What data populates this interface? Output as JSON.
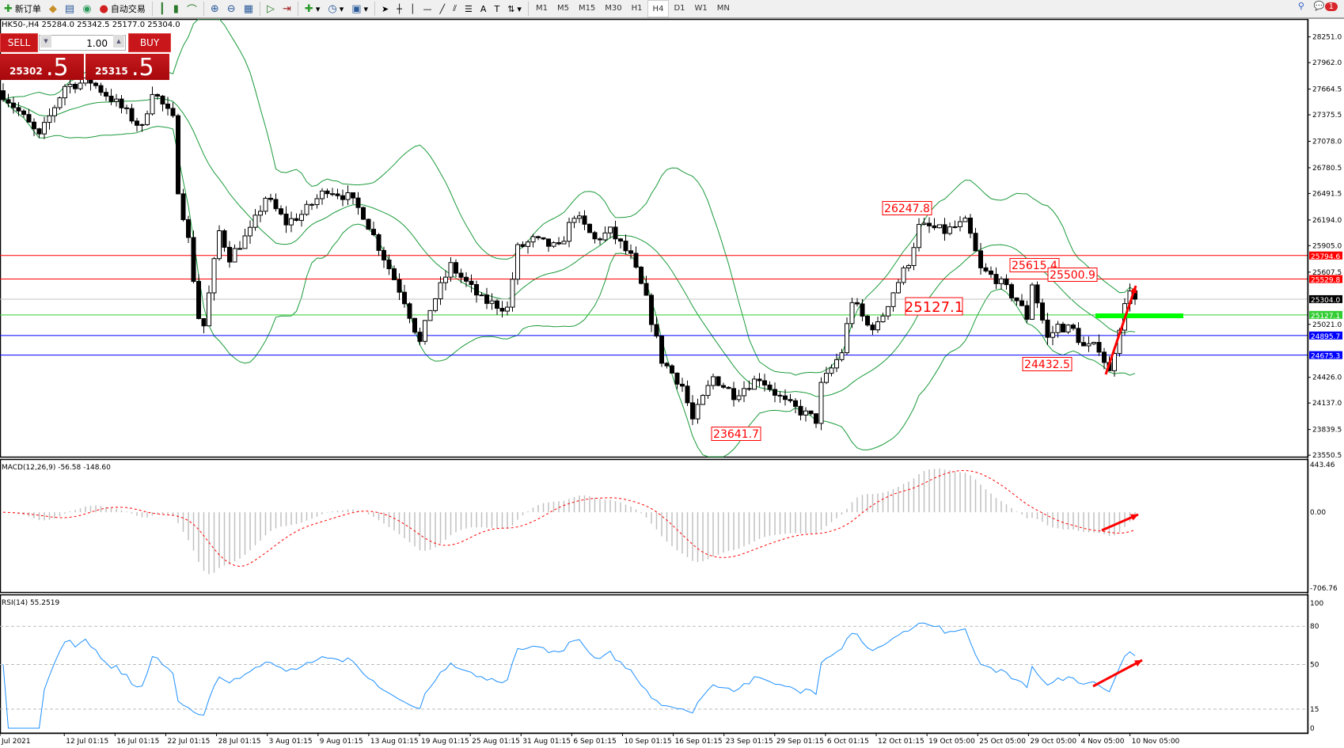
{
  "toolbar": {
    "new_order_label": "新订单",
    "auto_trading_label": "自动交易",
    "timeframes": [
      "M1",
      "M5",
      "M15",
      "M30",
      "H1",
      "H4",
      "D1",
      "W1",
      "MN"
    ],
    "active_timeframe": "H4",
    "notification_count": "1"
  },
  "chart_header": "HK50-,H4  25284.0 25342.5 25177.0 25304.0",
  "trade_panel": {
    "sell_label": "SELL",
    "buy_label": "BUY",
    "lot": "1.00",
    "sell_price_main": "25302",
    "sell_price_frac": ".5",
    "buy_price_main": "25315",
    "buy_price_frac": ".5"
  },
  "price_axis": {
    "range": [
      23550.5,
      28251.0
    ],
    "ticks": [
      "28251.0",
      "27962.0",
      "27664.5",
      "27375.5",
      "27078.0",
      "26780.5",
      "26491.5",
      "26194.0",
      "25905.0",
      "25607.5",
      "25021.0",
      "24426.0",
      "24137.0",
      "23839.5",
      "23550.5"
    ]
  },
  "levels": [
    {
      "price": "25794.6",
      "color": "#ff0000"
    },
    {
      "price": "25529.8",
      "color": "#ff0000"
    },
    {
      "price": "25304.0",
      "color": "#000000",
      "line": "#c0c0c0"
    },
    {
      "price": "25127.1",
      "color": "#32cd32",
      "line": "#32cd32"
    },
    {
      "price": "24895.7",
      "color": "#0000ff"
    },
    {
      "price": "24675.3",
      "color": "#0000ff"
    }
  ],
  "annotations": [
    {
      "text": "26247.8",
      "size": "small"
    },
    {
      "text": "25615.4",
      "size": "small"
    },
    {
      "text": "25500.9",
      "size": "small"
    },
    {
      "text": "25127.1",
      "size": "large"
    },
    {
      "text": "23641.7",
      "size": "small"
    },
    {
      "text": "24432.5",
      "size": "small"
    }
  ],
  "price_close_path": [
    [
      0,
      27606
    ],
    [
      3,
      27413
    ],
    [
      7,
      27124
    ],
    [
      12,
      27702
    ],
    [
      17,
      27750
    ],
    [
      22,
      27509
    ],
    [
      27,
      27220
    ],
    [
      29,
      27654
    ],
    [
      33,
      27317
    ],
    [
      34,
      26546
    ],
    [
      36,
      25968
    ],
    [
      38,
      25101
    ],
    [
      39,
      25005
    ],
    [
      42,
      26065
    ],
    [
      44,
      25775
    ],
    [
      48,
      26065
    ],
    [
      51,
      26450
    ],
    [
      55,
      26161
    ],
    [
      58,
      26257
    ],
    [
      63,
      26546
    ],
    [
      67,
      26450
    ],
    [
      70,
      26257
    ],
    [
      74,
      25775
    ],
    [
      78,
      25294
    ],
    [
      81,
      24812
    ],
    [
      83,
      25198
    ],
    [
      87,
      25679
    ],
    [
      90,
      25486
    ],
    [
      93,
      25294
    ],
    [
      98,
      25198
    ],
    [
      100,
      25872
    ],
    [
      103,
      25968
    ],
    [
      108,
      25872
    ],
    [
      111,
      26257
    ],
    [
      115,
      25968
    ],
    [
      118,
      26065
    ],
    [
      122,
      25775
    ],
    [
      125,
      25294
    ],
    [
      128,
      24620
    ],
    [
      132,
      24331
    ],
    [
      134,
      23945
    ],
    [
      138,
      24427
    ],
    [
      142,
      24235
    ],
    [
      147,
      24427
    ],
    [
      152,
      24138
    ],
    [
      155,
      24042
    ],
    [
      158,
      23945
    ],
    [
      159,
      24331
    ],
    [
      163,
      24716
    ],
    [
      165,
      25294
    ],
    [
      168,
      25005
    ],
    [
      170,
      25005
    ],
    [
      173,
      25390
    ],
    [
      176,
      25727
    ],
    [
      178,
      26113
    ],
    [
      180,
      26113
    ],
    [
      183,
      26065
    ],
    [
      187,
      26161
    ],
    [
      188,
      26016
    ],
    [
      190,
      25631
    ],
    [
      193,
      25535
    ],
    [
      197,
      25294
    ],
    [
      199,
      25101
    ],
    [
      200,
      25486
    ],
    [
      203,
      24860
    ],
    [
      205,
      25005
    ],
    [
      208,
      24956
    ],
    [
      210,
      24764
    ],
    [
      213,
      24764
    ],
    [
      215,
      24475
    ],
    [
      217,
      25005
    ],
    [
      219,
      25438
    ],
    [
      220,
      25304
    ]
  ],
  "indicators": {
    "bollinger_color": "#1a9a3a",
    "macd_label": "MACD(12,26,9) -56.58 -148.60",
    "macd_axis": [
      "443.46",
      "0.00",
      "-706.76"
    ],
    "macd_range": [
      -706.76,
      443.46
    ],
    "rsi_label": "RSI(14) 55.2519",
    "rsi_axis": [
      "100",
      "80",
      "50",
      "15",
      "0"
    ],
    "rsi_color": "#1e90ff"
  },
  "time_axis": [
    "Jul 2021",
    "12 Jul 01:15",
    "16 Jul 01:15",
    "22 Jul 01:15",
    "28 Jul 01:15",
    "3 Aug 01:15",
    "9 Aug 01:15",
    "13 Aug 01:15",
    "19 Aug 01:15",
    "25 Aug 01:15",
    "31 Aug 01:15",
    "6 Sep 01:15",
    "10 Sep 01:15",
    "16 Sep 01:15",
    "23 Sep 01:15",
    "29 Sep 01:15",
    "6 Oct 01:15",
    "12 Oct 01:15",
    "19 Oct 05:00",
    "25 Oct 05:00",
    "29 Oct 05:00",
    "4 Nov 05:00",
    "10 Nov 05:00"
  ]
}
